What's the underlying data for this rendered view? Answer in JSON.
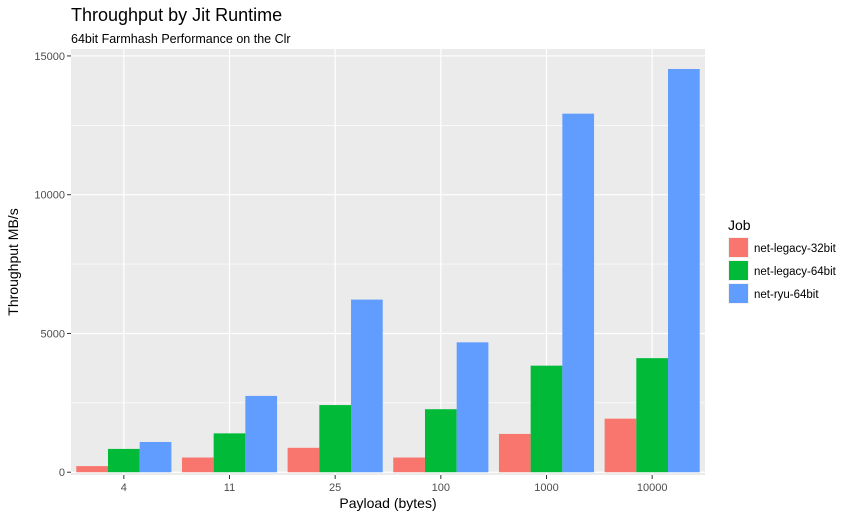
{
  "chart_data": {
    "type": "bar",
    "title": "Throughput by Jit Runtime",
    "subtitle": "64bit Farmhash Performance on the Clr",
    "xlabel": "Payload (bytes)",
    "ylabel": "Throughput MB/s",
    "categories": [
      "4",
      "11",
      "25",
      "100",
      "1000",
      "10000"
    ],
    "ylim": [
      -100,
      15250
    ],
    "yticks": [
      0,
      5000,
      10000,
      15000
    ],
    "ytick_labels": [
      "0",
      "5000",
      "10000",
      "15000"
    ],
    "grid": true,
    "legend": {
      "title": "Job",
      "position": "right"
    },
    "series": [
      {
        "name": "net-legacy-32bit",
        "color": "#F8766D",
        "values": [
          220,
          530,
          880,
          530,
          1380,
          1930
        ]
      },
      {
        "name": "net-legacy-64bit",
        "color": "#00BA38",
        "values": [
          840,
          1400,
          2420,
          2270,
          3840,
          4110
        ]
      },
      {
        "name": "net-ryu-64bit",
        "color": "#619CFF",
        "values": [
          1090,
          2750,
          6220,
          4680,
          12920,
          14530
        ]
      }
    ]
  }
}
